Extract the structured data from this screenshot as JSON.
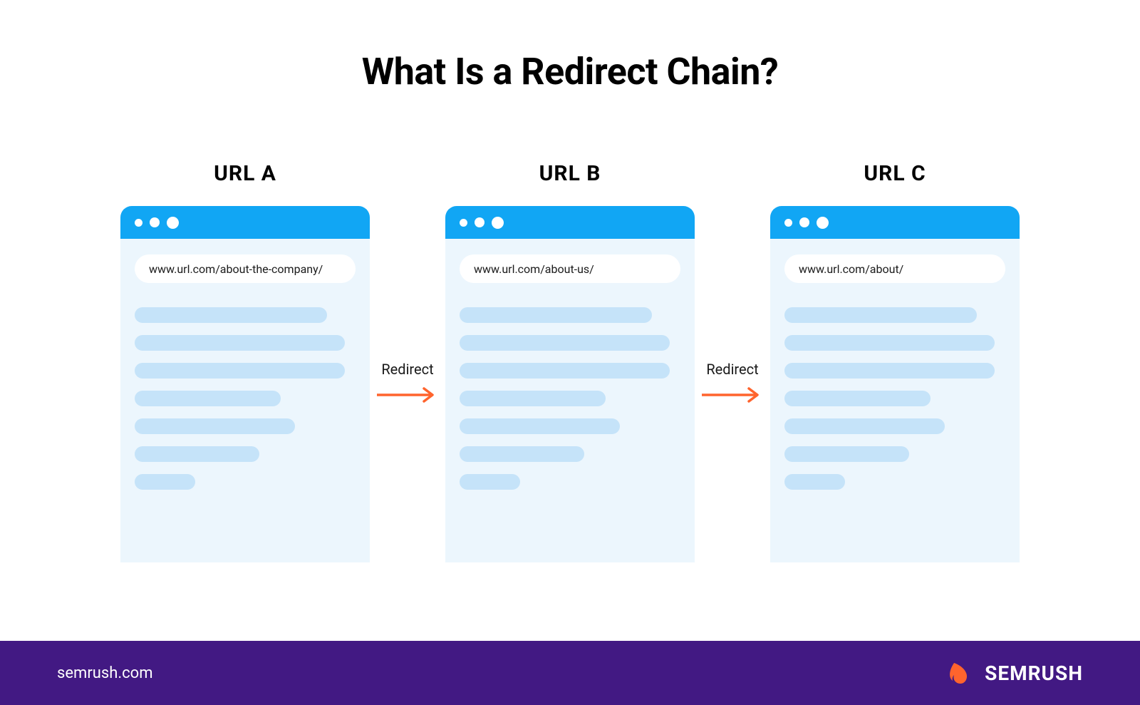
{
  "title": "What Is a Redirect Chain?",
  "colors": {
    "browser_header": "#11a6f4",
    "browser_body": "#ecf6fd",
    "content_line": "#c5e3f9",
    "header_dot_fill": "#ffffff",
    "arrow": "#ff642d",
    "footer_bg": "#421983",
    "footer_text": "#ffffff",
    "text": "#000000",
    "brand_icon": "#ff642d"
  },
  "header_dots": {
    "sizes": [
      11,
      14,
      17
    ],
    "gap": 10
  },
  "columns": [
    {
      "label": "URL A",
      "url": "www.url.com/about-the-company/",
      "content_line_widths": [
        270,
        295,
        295,
        205,
        225,
        175,
        85
      ],
      "content_line_height": 22
    },
    {
      "label": "URL B",
      "url": "www.url.com/about-us/",
      "content_line_widths": [
        270,
        295,
        295,
        205,
        225,
        175,
        85
      ],
      "content_line_height": 22
    },
    {
      "label": "URL C",
      "url": "www.url.com/about/",
      "content_line_widths": [
        270,
        295,
        295,
        205,
        225,
        175,
        85
      ],
      "content_line_height": 22
    }
  ],
  "arrows": [
    {
      "label": "Redirect"
    },
    {
      "label": "Redirect"
    }
  ],
  "footer": {
    "site": "semrush.com",
    "brand": "SEMRUSH"
  }
}
